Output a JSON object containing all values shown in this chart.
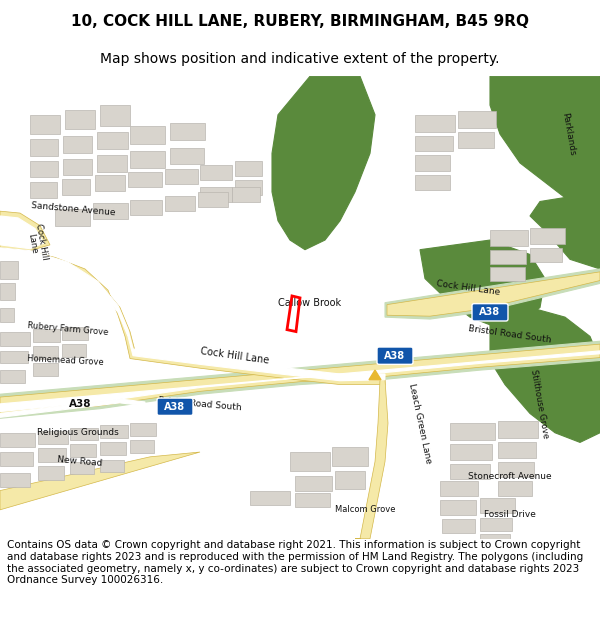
{
  "title_line1": "10, COCK HILL LANE, RUBERY, BIRMINGHAM, B45 9RQ",
  "title_line2": "Map shows position and indicative extent of the property.",
  "footer": "Contains OS data © Crown copyright and database right 2021. This information is subject to Crown copyright and database rights 2023 and is reproduced with the permission of HM Land Registry. The polygons (including the associated geometry, namely x, y co-ordinates) are subject to Crown copyright and database rights 2023 Ordnance Survey 100026316.",
  "map_bg": "#f0ede8",
  "green_dark": "#5a8a3c",
  "green_light": "#c8ddb8",
  "road_yellow_fill": "#f5e9a8",
  "road_yellow_edge": "#d4b84a",
  "building_color": "#d8d4cd",
  "building_outline": "#bab6b0",
  "plot_color": "#ff0000",
  "title_fontsize": 11,
  "subtitle_fontsize": 10,
  "footer_fontsize": 7.5
}
